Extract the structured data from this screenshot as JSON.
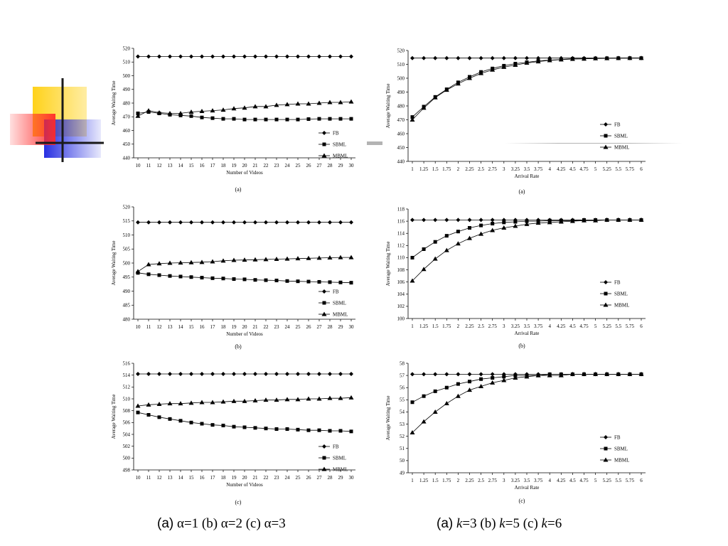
{
  "slide": {
    "caption_left": {
      "a_letter": "(a)",
      "rest": "α=1 (b) α=2 (c) α=3"
    },
    "caption_right": {
      "a_letter": "(a)",
      "k1": "k",
      "t1": "=3 (b) ",
      "k2": "k",
      "t2": "=5 (c) ",
      "k3": "k",
      "t3": "=6"
    },
    "colors": {
      "deco_yellow": "#ffd21a",
      "deco_red": "#ff2a2a",
      "deco_blue": "#1c24e0",
      "line": "#000000",
      "accent_gray": "#b3b3b3"
    }
  },
  "chart_data": [
    {
      "id": "alpha1",
      "type": "line",
      "subcaption": "(a)",
      "xlabel": "Number of Videos",
      "ylabel": "Average Waiting Time",
      "x": [
        10,
        11,
        12,
        13,
        14,
        15,
        16,
        17,
        18,
        19,
        20,
        21,
        22,
        23,
        24,
        25,
        26,
        27,
        28,
        29,
        30
      ],
      "xticks": [
        "10",
        "11",
        "12",
        "13",
        "14",
        "15",
        "16",
        "17",
        "18",
        "19",
        "20",
        "21",
        "22",
        "23",
        "24",
        "25",
        "26",
        "27",
        "28",
        "29",
        "30"
      ],
      "ylim": [
        440,
        520
      ],
      "yticks": [
        "440",
        "450",
        "460",
        "470",
        "480",
        "490",
        "500",
        "510",
        "520"
      ],
      "legend": "bottom-right",
      "series": [
        {
          "name": "FB",
          "marker": "diamond",
          "values": [
            514,
            514,
            514,
            514,
            514,
            514,
            514,
            514,
            514,
            514,
            514,
            514,
            514,
            514,
            514,
            514,
            514,
            514,
            514,
            514,
            514
          ]
        },
        {
          "name": "SBML",
          "marker": "square",
          "values": [
            472.5,
            473.5,
            472.5,
            471.5,
            471,
            470.5,
            469.5,
            469,
            468.5,
            468.5,
            468,
            468,
            468,
            468,
            468,
            468,
            468.3,
            468.5,
            468.5,
            468.5,
            468.5
          ]
        },
        {
          "name": "MBML",
          "marker": "triangle",
          "values": [
            470.5,
            474.5,
            473,
            472.5,
            472.5,
            473.5,
            474,
            474.5,
            475,
            476,
            476.5,
            477.5,
            477.5,
            478.5,
            479,
            479.5,
            479.5,
            480,
            480.5,
            480.5,
            481
          ]
        }
      ]
    },
    {
      "id": "k3",
      "type": "line",
      "subcaption": "(a)",
      "xlabel": "Arrival Rate",
      "ylabel": "Average Waiting Time",
      "x": [
        1,
        1.25,
        1.5,
        1.75,
        2,
        2.25,
        2.5,
        2.75,
        3,
        3.25,
        3.5,
        3.75,
        4,
        4.25,
        4.5,
        4.75,
        5,
        5.25,
        5.5,
        5.75,
        6
      ],
      "xticks": [
        "1",
        "1.25",
        "1.5",
        "1.75",
        "2",
        "2.25",
        "2.5",
        "2.75",
        "3",
        "3.25",
        "3.5",
        "3.75",
        "4",
        "4.25",
        "4.5",
        "4.75",
        "5",
        "5.25",
        "5.5",
        "5.75",
        "6"
      ],
      "ylim": [
        440,
        520
      ],
      "yticks": [
        "440",
        "450",
        "460",
        "470",
        "480",
        "490",
        "500",
        "510",
        "520"
      ],
      "legend": "right",
      "series": [
        {
          "name": "FB",
          "marker": "diamond",
          "values": [
            514.5,
            514.5,
            514.5,
            514.5,
            514.5,
            514.5,
            514.5,
            514.5,
            514.5,
            514.5,
            514.5,
            514.5,
            514.5,
            514.5,
            514.5,
            514.5,
            514.5,
            514.5,
            514.5,
            514.5,
            514.5
          ]
        },
        {
          "name": "SBML",
          "marker": "square",
          "values": [
            472,
            479.5,
            486.5,
            492,
            497,
            501,
            504.5,
            507,
            509,
            510.5,
            511.5,
            512.5,
            513,
            513.5,
            514,
            514,
            514.3,
            514.4,
            514.5,
            514.5,
            514.5
          ]
        },
        {
          "name": "MBML",
          "marker": "triangle",
          "values": [
            470,
            478.5,
            486,
            491.5,
            496,
            500,
            503.5,
            506,
            508,
            509.5,
            511,
            512,
            512.8,
            513.4,
            513.8,
            514,
            514.2,
            514.3,
            514.4,
            514.5,
            514.5
          ]
        }
      ]
    },
    {
      "id": "alpha2",
      "type": "line",
      "subcaption": "(b)",
      "xlabel": "Number of Videos",
      "ylabel": "Average Waiting Time",
      "x": [
        10,
        11,
        12,
        13,
        14,
        15,
        16,
        17,
        18,
        19,
        20,
        21,
        22,
        23,
        24,
        25,
        26,
        27,
        28,
        29,
        30
      ],
      "xticks": [
        "10",
        "11",
        "12",
        "13",
        "14",
        "15",
        "16",
        "17",
        "18",
        "19",
        "20",
        "21",
        "22",
        "23",
        "24",
        "25",
        "26",
        "27",
        "28",
        "29",
        "30"
      ],
      "ylim": [
        480,
        520
      ],
      "yticks": [
        "480",
        "485",
        "490",
        "495",
        "500",
        "505",
        "510",
        "515",
        "520"
      ],
      "legend": "bottom-right",
      "series": [
        {
          "name": "FB",
          "marker": "diamond",
          "values": [
            514.5,
            514.5,
            514.5,
            514.5,
            514.5,
            514.5,
            514.5,
            514.5,
            514.5,
            514.5,
            514.5,
            514.5,
            514.5,
            514.5,
            514.5,
            514.5,
            514.5,
            514.5,
            514.5,
            514.5,
            514.5
          ]
        },
        {
          "name": "SBML",
          "marker": "square",
          "values": [
            496.5,
            496,
            495.7,
            495.4,
            495.2,
            495,
            494.8,
            494.6,
            494.5,
            494.3,
            494.2,
            494,
            493.9,
            493.8,
            493.6,
            493.5,
            493.4,
            493.3,
            493.2,
            493.1,
            493
          ]
        },
        {
          "name": "MBML",
          "marker": "triangle",
          "values": [
            497,
            499.5,
            499.8,
            500,
            500.1,
            500.2,
            500.3,
            500.5,
            500.8,
            501,
            501.1,
            501.2,
            501.3,
            501.4,
            501.5,
            501.6,
            501.7,
            501.8,
            501.9,
            502,
            502
          ]
        }
      ]
    },
    {
      "id": "k5",
      "type": "line",
      "subcaption": "(b)",
      "xlabel": "Arrival Rate",
      "ylabel": "Average Waiting Time",
      "x": [
        1,
        1.25,
        1.5,
        1.75,
        2,
        2.25,
        2.5,
        2.75,
        3,
        3.25,
        3.5,
        3.75,
        4,
        4.25,
        4.5,
        4.75,
        5,
        5.25,
        5.5,
        5.75,
        6
      ],
      "xticks": [
        "1",
        "1.25",
        "1.5",
        "1.75",
        "2",
        "2.25",
        "2.5",
        "2.75",
        "3",
        "3.25",
        "3.5",
        "3.75",
        "4",
        "4.25",
        "4.5",
        "4.75",
        "5",
        "5.25",
        "5.5",
        "5.75",
        "6"
      ],
      "ylim": [
        100,
        118
      ],
      "yticks": [
        "100",
        "102",
        "104",
        "106",
        "108",
        "110",
        "112",
        "114",
        "116",
        "118"
      ],
      "legend": "right",
      "series": [
        {
          "name": "FB",
          "marker": "diamond",
          "values": [
            116.2,
            116.2,
            116.2,
            116.2,
            116.2,
            116.2,
            116.2,
            116.2,
            116.2,
            116.2,
            116.2,
            116.2,
            116.2,
            116.2,
            116.2,
            116.2,
            116.2,
            116.2,
            116.2,
            116.2,
            116.2
          ]
        },
        {
          "name": "SBML",
          "marker": "square",
          "values": [
            110,
            111.4,
            112.6,
            113.6,
            114.3,
            114.9,
            115.3,
            115.6,
            115.8,
            115.9,
            116,
            116,
            116.1,
            116.1,
            116.1,
            116.2,
            116.2,
            116.2,
            116.2,
            116.2,
            116.2
          ]
        },
        {
          "name": "MBML",
          "marker": "triangle",
          "values": [
            106.2,
            108.1,
            109.8,
            111.2,
            112.3,
            113.2,
            113.9,
            114.5,
            114.9,
            115.2,
            115.5,
            115.7,
            115.8,
            115.9,
            116,
            116.1,
            116.1,
            116.2,
            116.2,
            116.2,
            116.2
          ]
        }
      ]
    },
    {
      "id": "alpha3",
      "type": "line",
      "subcaption": "(c)",
      "xlabel": "Number of Videos",
      "ylabel": "Average Waiting Time",
      "x": [
        10,
        11,
        12,
        13,
        14,
        15,
        16,
        17,
        18,
        19,
        20,
        21,
        22,
        23,
        24,
        25,
        26,
        27,
        28,
        29,
        30
      ],
      "xticks": [
        "10",
        "11",
        "12",
        "13",
        "14",
        "15",
        "16",
        "17",
        "18",
        "19",
        "20",
        "21",
        "22",
        "23",
        "24",
        "25",
        "26",
        "27",
        "28",
        "29",
        "30"
      ],
      "ylim": [
        498,
        516
      ],
      "yticks": [
        "498",
        "500",
        "502",
        "504",
        "506",
        "508",
        "510",
        "512",
        "514",
        "516"
      ],
      "legend": "bottom-right",
      "series": [
        {
          "name": "FB",
          "marker": "diamond",
          "values": [
            514.2,
            514.2,
            514.2,
            514.2,
            514.2,
            514.2,
            514.2,
            514.2,
            514.2,
            514.2,
            514.2,
            514.2,
            514.2,
            514.2,
            514.2,
            514.2,
            514.2,
            514.2,
            514.2,
            514.2,
            514.2
          ]
        },
        {
          "name": "SBML",
          "marker": "square",
          "values": [
            507.7,
            507.3,
            506.9,
            506.6,
            506.3,
            506,
            505.8,
            505.6,
            505.5,
            505.3,
            505.2,
            505.1,
            505,
            504.9,
            504.9,
            504.8,
            504.7,
            504.7,
            504.6,
            504.6,
            504.5
          ]
        },
        {
          "name": "MBML",
          "marker": "triangle",
          "values": [
            508.8,
            509,
            509.1,
            509.2,
            509.2,
            509.3,
            509.4,
            509.4,
            509.5,
            509.6,
            509.6,
            509.7,
            509.8,
            509.8,
            509.9,
            509.9,
            510,
            510,
            510.1,
            510.1,
            510.2
          ]
        }
      ]
    },
    {
      "id": "k6",
      "type": "line",
      "subcaption": "(c)",
      "xlabel": "Arrival Rate",
      "ylabel": "Average Waiting Time",
      "x": [
        1,
        1.25,
        1.5,
        1.75,
        2,
        2.25,
        2.5,
        2.75,
        3,
        3.25,
        3.5,
        3.75,
        4,
        4.25,
        4.5,
        4.75,
        5,
        5.25,
        5.5,
        5.75,
        6
      ],
      "xticks": [
        "1",
        "1.25",
        "1.5",
        "1.75",
        "2",
        "2.25",
        "2.5",
        "2.75",
        "3",
        "3.25",
        "3.5",
        "3.75",
        "4",
        "4.25",
        "4.5",
        "4.75",
        "5",
        "5.25",
        "5.5",
        "5.75",
        "6"
      ],
      "ylim": [
        49,
        58
      ],
      "yticks": [
        "49",
        "50",
        "51",
        "52",
        "53",
        "54",
        "55",
        "56",
        "57",
        "58"
      ],
      "legend": "right",
      "series": [
        {
          "name": "FB",
          "marker": "diamond",
          "values": [
            57.1,
            57.1,
            57.1,
            57.1,
            57.1,
            57.1,
            57.1,
            57.1,
            57.1,
            57.1,
            57.1,
            57.1,
            57.1,
            57.1,
            57.1,
            57.1,
            57.1,
            57.1,
            57.1,
            57.1,
            57.1
          ]
        },
        {
          "name": "SBML",
          "marker": "square",
          "values": [
            54.8,
            55.3,
            55.7,
            56,
            56.3,
            56.5,
            56.7,
            56.8,
            56.9,
            57,
            57,
            57,
            57.1,
            57.1,
            57.1,
            57.1,
            57.1,
            57.1,
            57.1,
            57.1,
            57.1
          ]
        },
        {
          "name": "MBML",
          "marker": "triangle",
          "values": [
            52.3,
            53.2,
            54,
            54.7,
            55.3,
            55.8,
            56.1,
            56.4,
            56.6,
            56.8,
            56.9,
            57,
            57,
            57,
            57.1,
            57.1,
            57.1,
            57.1,
            57.1,
            57.1,
            57.1
          ]
        }
      ]
    }
  ]
}
